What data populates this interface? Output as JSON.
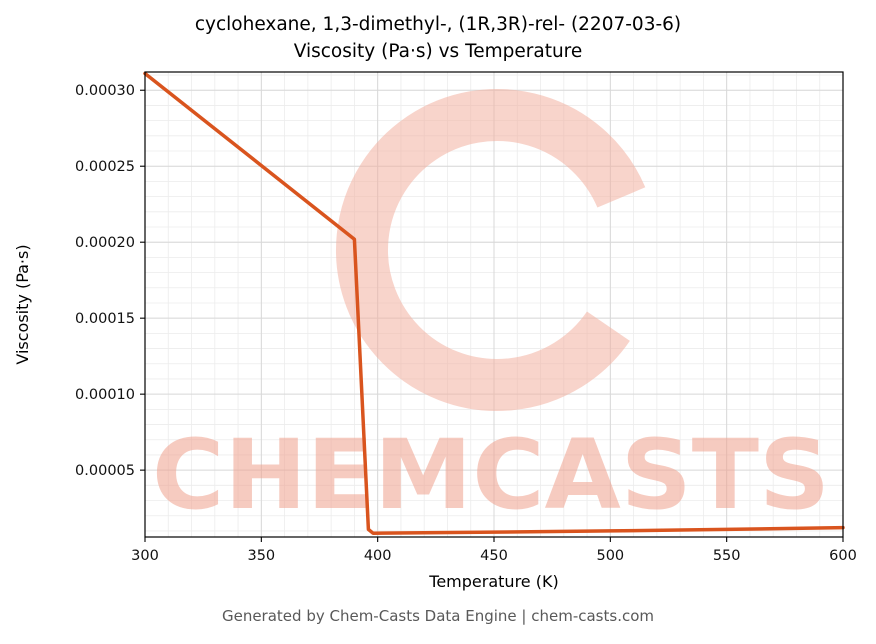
{
  "title_line1": "cyclohexane, 1,3-dimethyl-, (1R,3R)-rel- (2207-03-6)",
  "title_line2": "Viscosity (Pa·s) vs Temperature",
  "footer": "Generated by Chem-Casts Data Engine | chem-casts.com",
  "watermark": {
    "text": "CHEMCASTS",
    "text_color": "#f0a18e",
    "ring_color": "#f2b0a0",
    "text_opacity": 0.55,
    "ring_opacity": 0.55
  },
  "chart_data": {
    "type": "line",
    "title": "cyclohexane, 1,3-dimethyl-, (1R,3R)-rel- (2207-03-6)\nViscosity (Pa·s) vs Temperature",
    "xlabel": "Temperature (K)",
    "ylabel": "Viscosity (Pa·s)",
    "xlim": [
      300,
      600
    ],
    "ylim": [
      6e-06,
      0.000312
    ],
    "x_ticks": [
      300,
      350,
      400,
      450,
      500,
      550,
      600
    ],
    "x_tick_labels": [
      "300",
      "350",
      "400",
      "450",
      "500",
      "550",
      "600"
    ],
    "y_ticks": [
      5e-05,
      0.0001,
      0.00015,
      0.0002,
      0.00025,
      0.0003
    ],
    "y_tick_labels": [
      "0.00005",
      "0.00010",
      "0.00015",
      "0.00020",
      "0.00025",
      "0.00030"
    ],
    "x_minor_step": 10,
    "y_minor_step": 1e-05,
    "grid": "major+minor",
    "legend": "none",
    "line_color": "#d9541e",
    "line_width": 3.5,
    "series": [
      {
        "name": "viscosity",
        "points": [
          [
            300,
            0.000311
          ],
          [
            390,
            0.000202
          ],
          [
            396,
            1.1e-05
          ],
          [
            398,
            8.5e-06
          ],
          [
            420,
            8.8e-06
          ],
          [
            450,
            9.2e-06
          ],
          [
            500,
            1e-05
          ],
          [
            550,
            1.1e-05
          ],
          [
            600,
            1.22e-05
          ]
        ]
      }
    ]
  }
}
